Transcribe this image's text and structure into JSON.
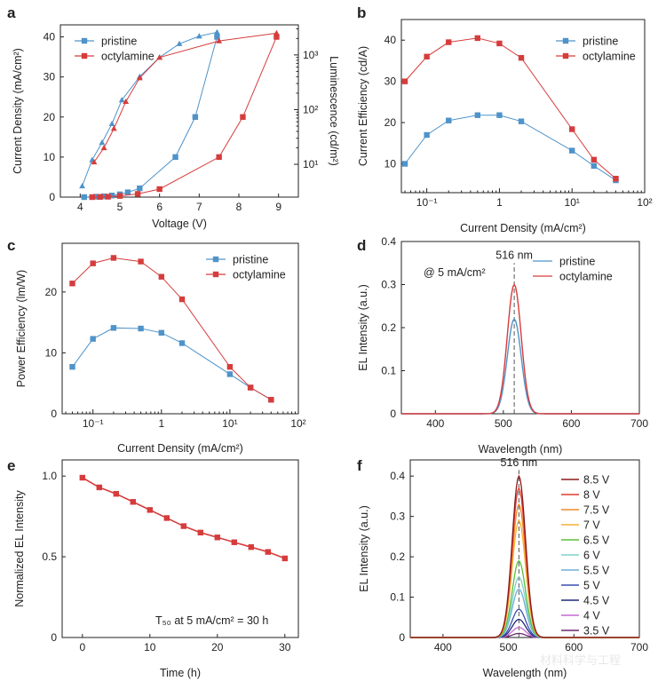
{
  "colors": {
    "pristine": "#4f93c9",
    "octylamine": "#d63c3c",
    "axis": "#222222"
  },
  "watermark": "材料科学与工程",
  "chart_data": [
    {
      "id": "a",
      "panel": "a",
      "type": "line",
      "xlabel": "Voltage (V)",
      "ylabel": "Current Density (mA/cm²)",
      "y2label": "Luminescence (cd/m²)",
      "xlim": [
        3.5,
        9.5
      ],
      "ylim": [
        0,
        43
      ],
      "y2lim_log": [
        0.4,
        3.55
      ],
      "xticks": [
        "4",
        "5",
        "6",
        "7",
        "8",
        "9"
      ],
      "yticks": [
        "0",
        "10",
        "20",
        "30",
        "40"
      ],
      "y2ticks": [
        "10¹",
        "10²",
        "10³"
      ],
      "legend": [
        "pristine",
        "octylamine"
      ],
      "series": [
        {
          "name": "pristine",
          "axis": "left",
          "marker": "square",
          "x": [
            4.1,
            4.4,
            4.6,
            4.8,
            5.0,
            5.2,
            5.5,
            6.4,
            6.9,
            7.45
          ],
          "y": [
            0,
            0.1,
            0.2,
            0.4,
            0.7,
            1.2,
            2.2,
            10,
            20,
            40
          ]
        },
        {
          "name": "octylamine",
          "axis": "left",
          "marker": "square",
          "x": [
            4.3,
            4.5,
            4.7,
            5.0,
            5.45,
            6.0,
            7.5,
            8.1,
            8.95
          ],
          "y": [
            0,
            0.05,
            0.1,
            0.3,
            0.8,
            2,
            10,
            20,
            40
          ]
        },
        {
          "name": "pristine",
          "axis": "right",
          "marker": "triangle",
          "x": [
            4.05,
            4.3,
            4.55,
            4.8,
            5.05,
            5.5,
            6.0,
            6.5,
            7.0,
            7.45
          ],
          "y": [
            4,
            12,
            25,
            55,
            150,
            400,
            900,
            1600,
            2200,
            2600
          ]
        },
        {
          "name": "octylamine",
          "axis": "right",
          "marker": "triangle",
          "x": [
            4.35,
            4.6,
            4.85,
            5.15,
            5.5,
            6.0,
            7.5,
            8.95
          ],
          "y": [
            11,
            20,
            45,
            140,
            380,
            900,
            1800,
            2500
          ]
        }
      ]
    },
    {
      "id": "b",
      "panel": "b",
      "type": "line",
      "xscale": "log",
      "xlabel": "Current Density   (mA/cm²)",
      "ylabel": "Current Efficiency (cd/A)",
      "xlim_log": [
        -1.35,
        2
      ],
      "ylim": [
        3,
        45
      ],
      "xticks": [
        "10⁻¹",
        "1",
        "10¹",
        "10²"
      ],
      "yticks": [
        "10",
        "20",
        "30",
        "40"
      ],
      "legend": [
        "pristine",
        "octylamine"
      ],
      "series": [
        {
          "name": "pristine",
          "x": [
            0.05,
            0.1,
            0.2,
            0.5,
            1,
            2,
            10,
            20,
            40
          ],
          "y": [
            10,
            17,
            20.5,
            21.8,
            21.8,
            20.3,
            13.2,
            9.5,
            6
          ]
        },
        {
          "name": "octylamine",
          "x": [
            0.05,
            0.1,
            0.2,
            0.5,
            1,
            2,
            10,
            20,
            40
          ],
          "y": [
            30,
            36,
            39.5,
            40.5,
            39.2,
            35.7,
            18.4,
            11,
            6.4
          ]
        }
      ]
    },
    {
      "id": "c",
      "panel": "c",
      "type": "line",
      "xscale": "log",
      "xlabel": "Current Density   (mA/cm²)",
      "ylabel": "Power Efficiency (lm/W)",
      "xlim_log": [
        -1.45,
        2
      ],
      "ylim": [
        0,
        28
      ],
      "xticks": [
        "10⁻¹",
        "1",
        "10¹",
        "10²"
      ],
      "yticks": [
        "0",
        "10",
        "20"
      ],
      "legend": [
        "pristine",
        "octylamine"
      ],
      "series": [
        {
          "name": "pristine",
          "x": [
            0.05,
            0.1,
            0.2,
            0.5,
            1,
            2,
            10,
            20,
            40
          ],
          "y": [
            7.7,
            12.3,
            14.1,
            14,
            13.3,
            11.6,
            6.5,
            4.3,
            2.3
          ]
        },
        {
          "name": "octylamine",
          "x": [
            0.05,
            0.1,
            0.2,
            0.5,
            1,
            2,
            10,
            20,
            40
          ],
          "y": [
            21.4,
            24.7,
            25.6,
            25,
            22.5,
            18.8,
            7.7,
            4.3,
            2.3
          ]
        }
      ]
    },
    {
      "id": "d",
      "panel": "d",
      "type": "line",
      "xlabel": "Wavelength   (nm)",
      "ylabel": "EL Intensity   (a.u.)",
      "xlim": [
        350,
        700
      ],
      "ylim": [
        0,
        0.4
      ],
      "xticks": [
        "400",
        "500",
        "600",
        "700"
      ],
      "yticks": [
        "0",
        "0.1",
        "0.2",
        "0.3",
        "0.4"
      ],
      "legend": [
        "pristine",
        "octylamine"
      ],
      "annotations": [
        "516 nm",
        "@ 5 mA/cm²"
      ],
      "peak_nm": 516,
      "fwhm_nm": 24,
      "series": [
        {
          "name": "pristine",
          "peak": 0.22
        },
        {
          "name": "octylamine",
          "peak": 0.3
        }
      ]
    },
    {
      "id": "e",
      "panel": "e",
      "type": "line",
      "xlabel": "Time (h)",
      "ylabel": "Normalized EL Intensity",
      "xlim": [
        -3,
        32
      ],
      "ylim": [
        0,
        1.1
      ],
      "xticks": [
        "0",
        "10",
        "20",
        "30"
      ],
      "yticks": [
        "0",
        "0.5",
        "1.0"
      ],
      "annotations": [
        "T₅₀ at 5 mA/cm² = 30 h"
      ],
      "series": [
        {
          "name": "octylamine",
          "x": [
            0,
            2.5,
            5,
            7.5,
            10,
            12.5,
            15,
            17.5,
            20,
            22.5,
            25,
            27.5,
            30
          ],
          "y": [
            0.99,
            0.93,
            0.89,
            0.84,
            0.79,
            0.74,
            0.69,
            0.65,
            0.62,
            0.59,
            0.56,
            0.53,
            0.49
          ]
        }
      ]
    },
    {
      "id": "f",
      "panel": "f",
      "type": "line",
      "xlabel": "Wavelength   (nm)",
      "ylabel": "EL Intensity (a.u.)",
      "xlim": [
        350,
        700
      ],
      "ylim": [
        0,
        0.44
      ],
      "xticks": [
        "400",
        "500",
        "600",
        "700"
      ],
      "yticks": [
        "0",
        "0.1",
        "0.2",
        "0.3",
        "0.4"
      ],
      "annotations": [
        "516 nm"
      ],
      "peak_nm": 516,
      "fwhm_nm": 24,
      "series": [
        {
          "name": "8.5 V",
          "peak": 0.4,
          "color": "#8b1a1a"
        },
        {
          "name": "8 V",
          "peak": 0.37,
          "color": "#e03a2f"
        },
        {
          "name": "7.5 V",
          "peak": 0.33,
          "color": "#f08a2c"
        },
        {
          "name": "7 V",
          "peak": 0.29,
          "color": "#f5b335"
        },
        {
          "name": "6.5 V",
          "peak": 0.19,
          "color": "#5cbf3a"
        },
        {
          "name": "6 V",
          "peak": 0.15,
          "color": "#7fd3c6"
        },
        {
          "name": "5.5 V",
          "peak": 0.12,
          "color": "#6eb0d9"
        },
        {
          "name": "5 V",
          "peak": 0.07,
          "color": "#3a4fb0"
        },
        {
          "name": "4.5 V",
          "peak": 0.045,
          "color": "#1f2a7a"
        },
        {
          "name": "4 V",
          "peak": 0.025,
          "color": "#c46ad1"
        },
        {
          "name": "3.5 V",
          "peak": 0.01,
          "color": "#6a2a6e"
        }
      ]
    }
  ]
}
